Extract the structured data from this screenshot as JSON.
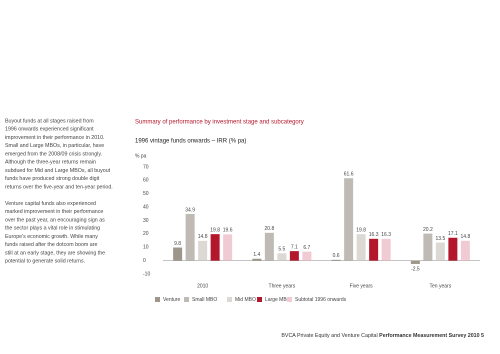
{
  "intro": {
    "paragraphs": [
      [
        "Buyout funds at all stages raised from",
        "1996 onwards experienced significant",
        "improvement in their performance in 2010.",
        "Small and Large MBOs, in particular, have",
        "emerged from the 2008/09 crisis strongly.",
        "Although the three-year returns remain",
        "subdued for Mid and Large MBOs, all buyout",
        "funds have produced strong double digit",
        "returns over the five-year and ten-year period."
      ],
      [
        "Venture capital funds also experienced",
        "marked improvement in their performance",
        "over the past year, an encouraging sign as",
        "the sector plays a vital role in stimulating",
        "Europe's economic growth. While many",
        "funds raised after the dotcom boom are",
        "still at an early stage, they are showing the",
        "potential to generate solid returns."
      ]
    ]
  },
  "chart_data": {
    "type": "bar",
    "title": "Summary of performance by investment stage and subcategory",
    "subtitle": "1996 vintage funds onwards – IRR (% pa)",
    "y_label": "% pa",
    "categories": [
      "2010",
      "Three years",
      "Five years",
      "Ten years"
    ],
    "series": [
      {
        "name": "Venture",
        "color": "#9e968a",
        "values": [
          9.8,
          1.4,
          0.6,
          -2.5
        ]
      },
      {
        "name": "Small MBO",
        "color": "#bfbab3",
        "values": [
          34.9,
          20.8,
          61.6,
          20.2
        ]
      },
      {
        "name": "Mid MBO",
        "color": "#dcd9d5",
        "values": [
          14.8,
          5.5,
          19.8,
          13.5
        ]
      },
      {
        "name": "Large MBO",
        "color": "#b3172b",
        "values": [
          19.8,
          7.1,
          16.3,
          17.1
        ]
      },
      {
        "name": "Subtotal 1996 onwards",
        "color": "#f1cbd3",
        "values": [
          19.6,
          6.7,
          16.3,
          14.8
        ]
      }
    ],
    "ylim": [
      -10,
      70
    ],
    "yticks": [
      -10,
      0,
      10,
      20,
      30,
      40,
      50,
      60,
      70
    ],
    "grid": false
  },
  "footer": {
    "text": "BVCA Private Equity and Venture Capital",
    "bold": "Performance Measurement Survey 2010",
    "page": "5"
  }
}
